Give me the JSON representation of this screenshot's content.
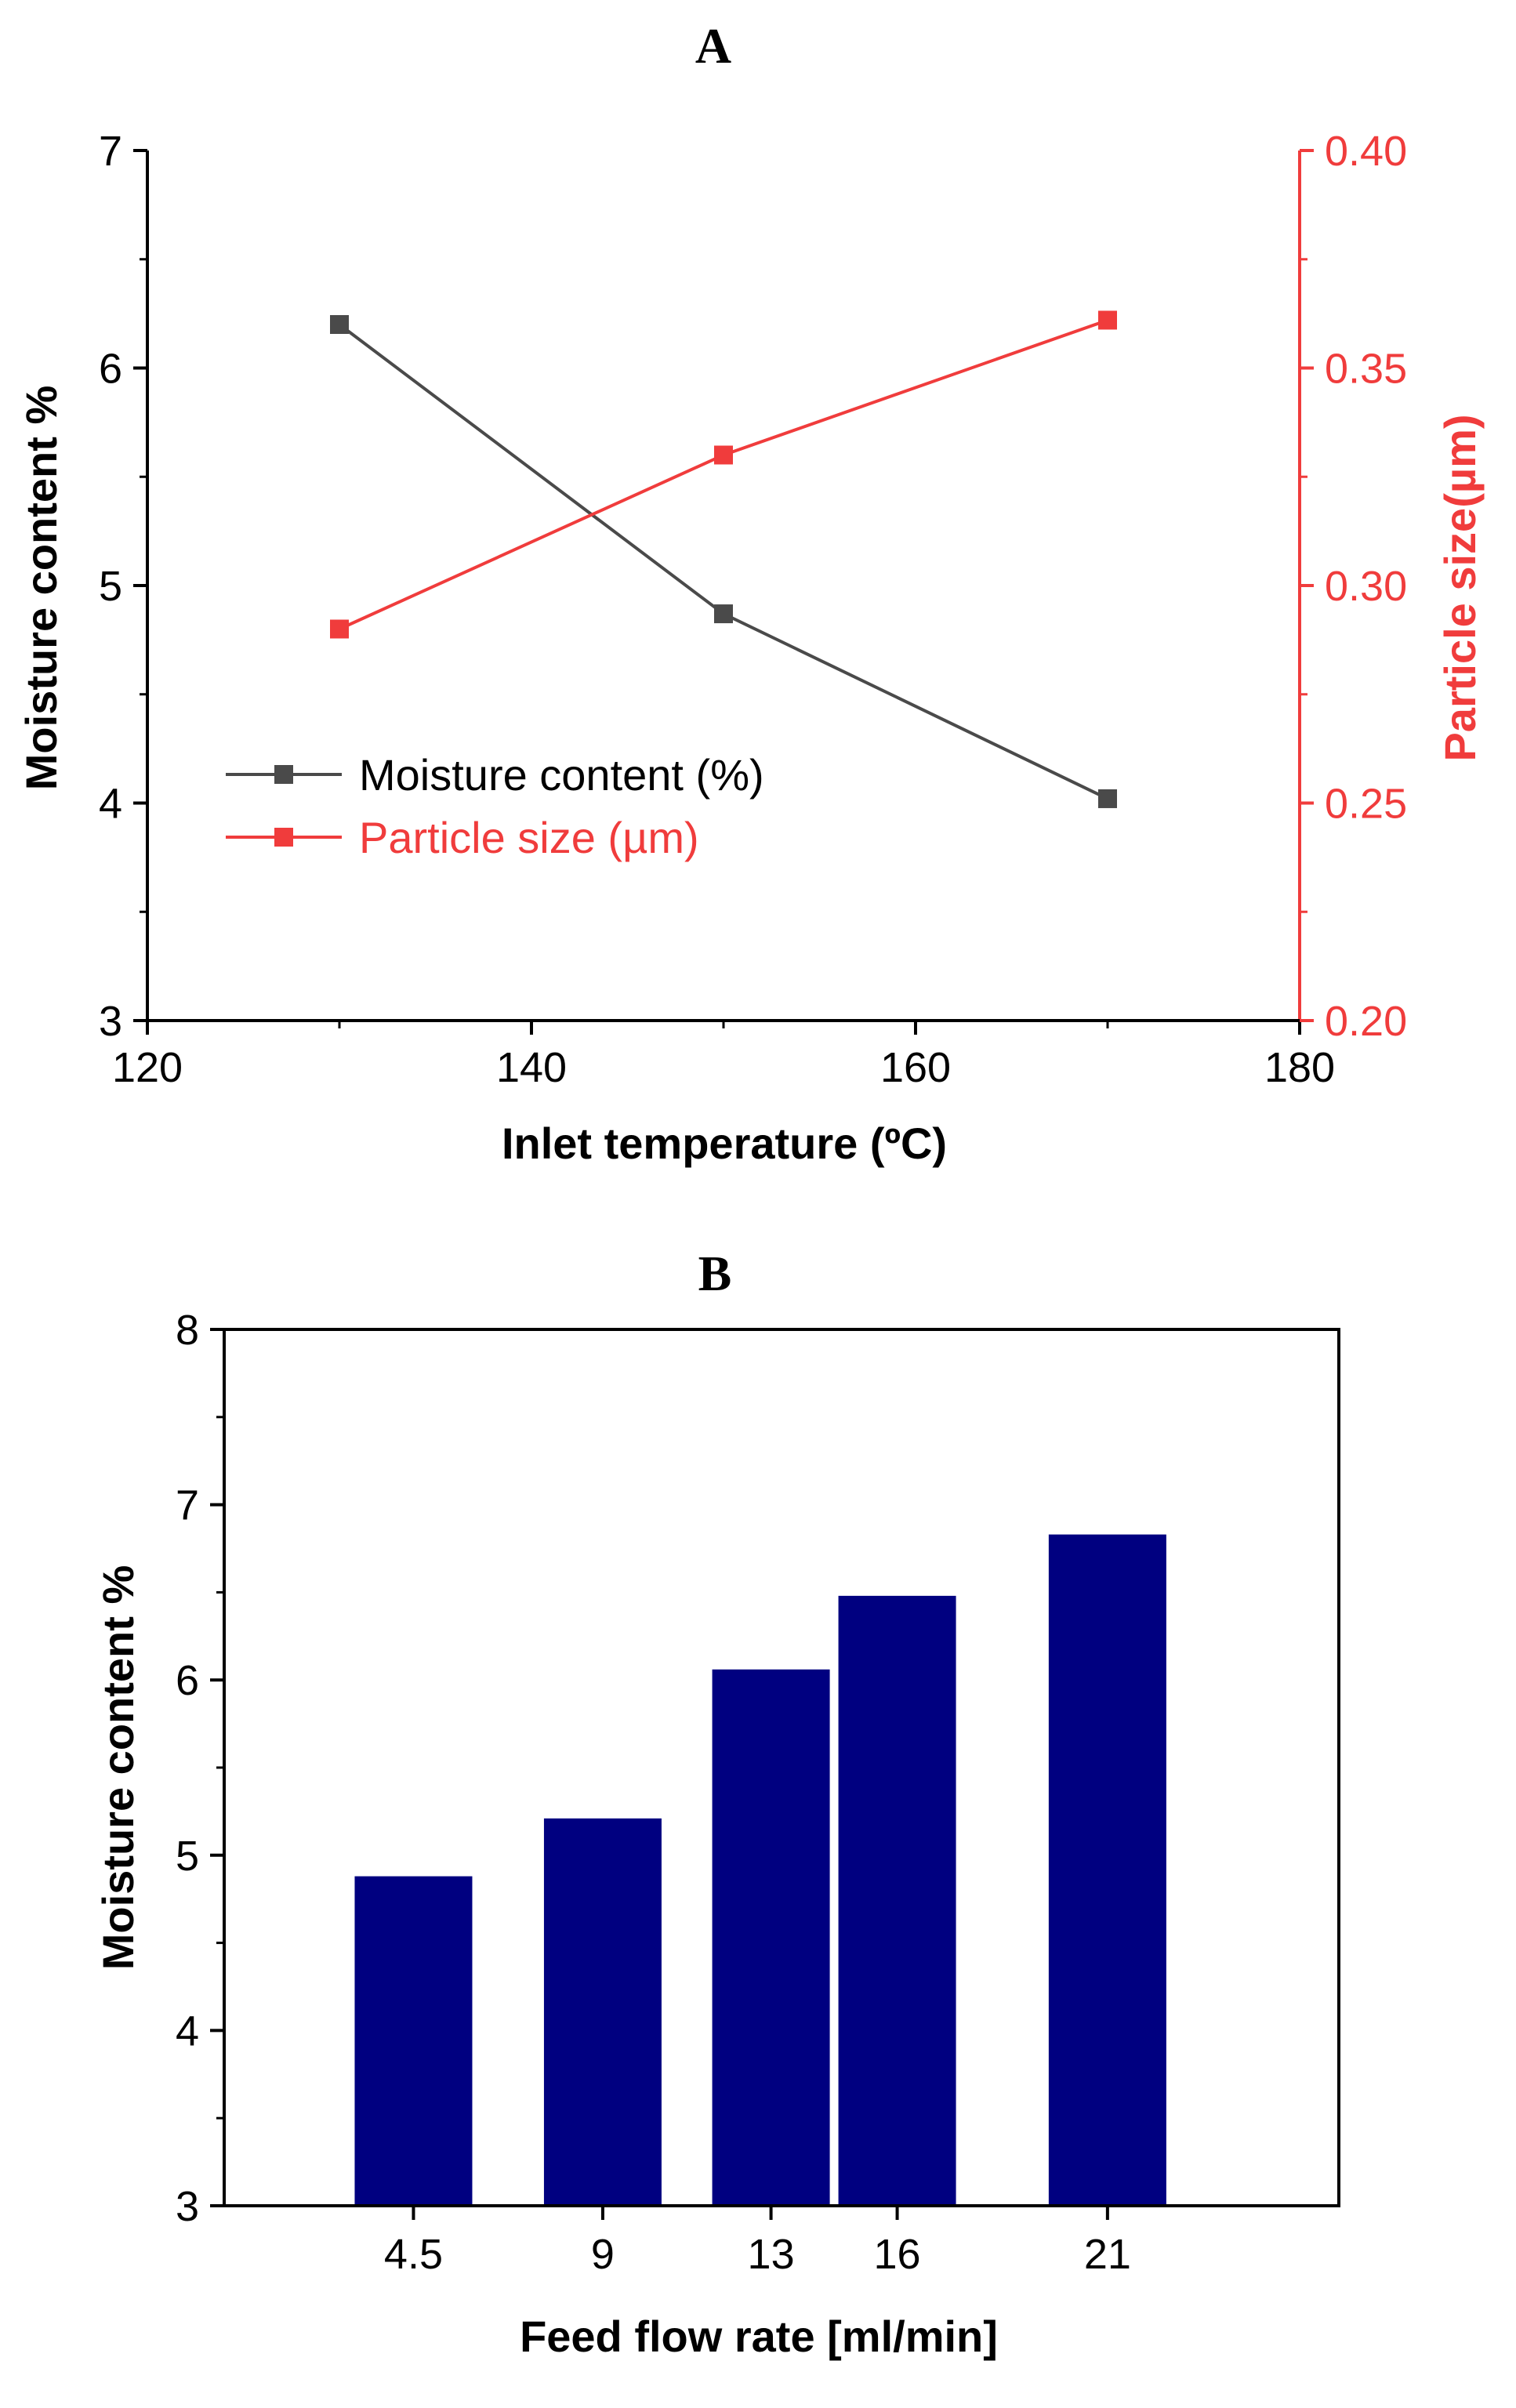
{
  "colors": {
    "moisture": "#4a4a4a",
    "particle": "#f03c3c",
    "bar": "#000080",
    "axis": "#000000"
  },
  "chart_data": [
    {
      "panel_label": "A",
      "type": "line",
      "x": [
        130,
        150,
        170
      ],
      "xlim": [
        120,
        180
      ],
      "x_ticks": [
        120,
        140,
        160,
        180
      ],
      "xlabel": "Inlet temperature (ºC)",
      "ylabel": "Moisture content %",
      "ylim": [
        3,
        7
      ],
      "y_ticks": [
        3,
        4,
        5,
        6,
        7
      ],
      "y2label": "Particle size(µm)",
      "y2lim": [
        0.2,
        0.4
      ],
      "y2_ticks": [
        "0.20",
        "0.25",
        "0.30",
        "0.35",
        "0.40"
      ],
      "series": [
        {
          "name": "Moisture content (%)",
          "axis": "left",
          "values": [
            6.2,
            4.87,
            4.02
          ]
        },
        {
          "name": "Particle size (µm)",
          "axis": "right",
          "values": [
            0.29,
            0.33,
            0.361
          ]
        }
      ],
      "legend": "center-left",
      "grid": false
    },
    {
      "panel_label": "B",
      "type": "bar",
      "categories": [
        "4.5",
        "9",
        "13",
        "16",
        "21"
      ],
      "values": [
        4.88,
        5.21,
        6.06,
        6.48,
        6.83
      ],
      "xlabel": "Feed flow rate [ml/min]",
      "ylabel": "Moisture content %",
      "ylim": [
        3,
        8
      ],
      "y_ticks": [
        3,
        4,
        5,
        6,
        7,
        8
      ],
      "grid": false
    }
  ]
}
